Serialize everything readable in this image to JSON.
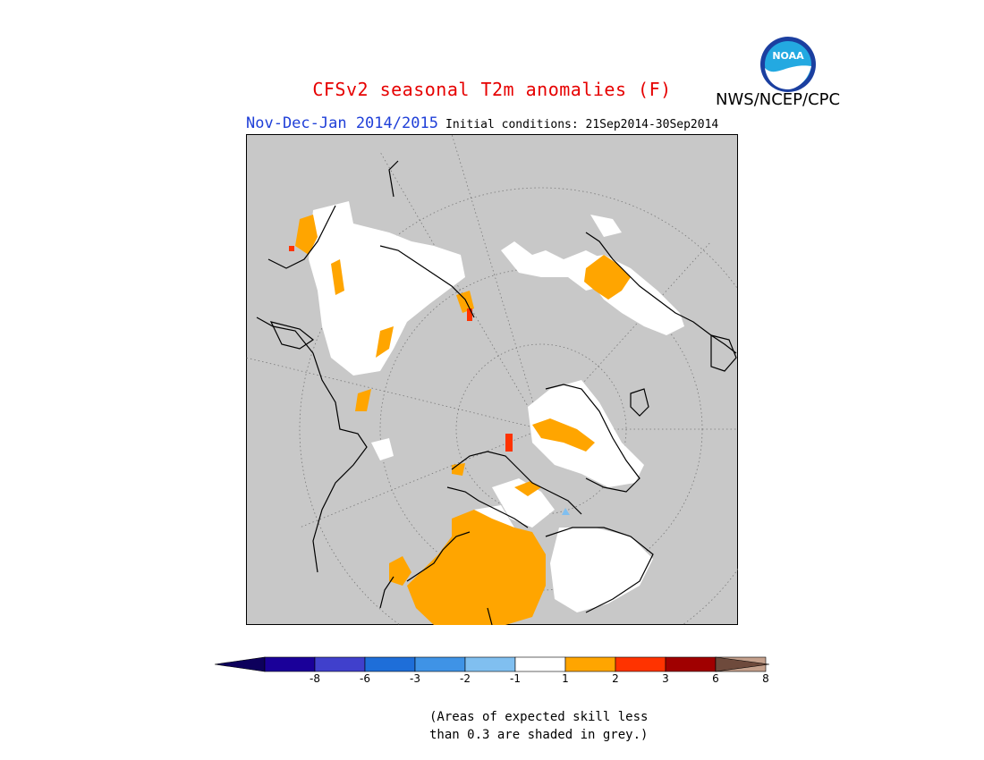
{
  "title": "CFSv2 seasonal T2m anomalies (F)",
  "agency": "NWS/NCEP/CPC",
  "logo_text": "NOAA",
  "period": "Nov-Dec-Jan 2014/2015",
  "init_conditions": "Initial conditions: 21Sep2014-30Sep2014",
  "colorbar": {
    "labels": [
      "-8",
      "-6",
      "-3",
      "-2",
      "-1",
      "1",
      "2",
      "3",
      "6",
      "8"
    ],
    "colors": [
      "#1a0099",
      "#4040cc",
      "#1e6ed9",
      "#3f93e6",
      "#80bff0",
      "#ffffff",
      "#ffa500",
      "#ff3300",
      "#a00000",
      "#c4a08c"
    ],
    "under_color": "#0d005c",
    "over_color": "#6e4a3c"
  },
  "colors": {
    "land_nan": "#c8c8c8",
    "warm": "#ffa500",
    "hot": "#ff3300",
    "cold": "#80bff0"
  },
  "note_line1": "(Areas of expected skill less",
  "note_line2": "than 0.3 are shaded in grey.)"
}
